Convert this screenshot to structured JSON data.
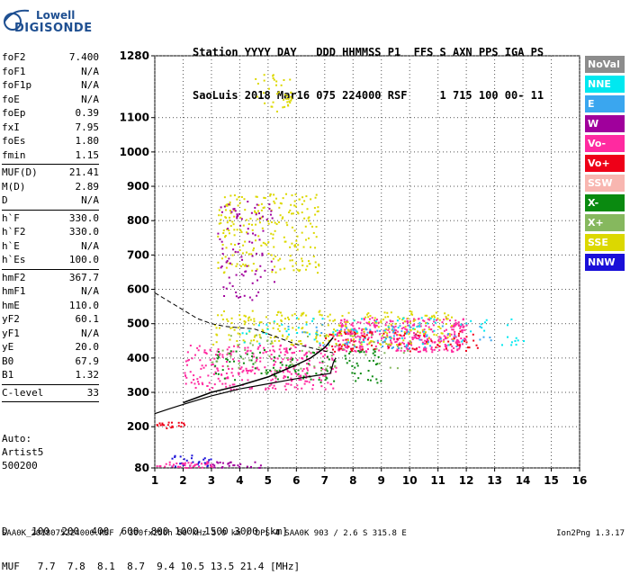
{
  "logo": {
    "line1": "Lowell",
    "line2": "DIGISONDE"
  },
  "header": {
    "line1": "Station YYYY DAY   DDD HHMMSS P1  FFS S AXN PPS IGA PS",
    "line2": "SaoLuis 2018 Mar16 075 224000 RSF     1 715 100 00- 11"
  },
  "params_top": [
    {
      "k": "foF2",
      "v": "7.400"
    },
    {
      "k": "foF1",
      "v": "N/A"
    },
    {
      "k": "foF1p",
      "v": "N/A"
    },
    {
      "k": "foE",
      "v": "N/A"
    },
    {
      "k": "foEp",
      "v": "0.39"
    },
    {
      "k": "fxI",
      "v": "7.95"
    },
    {
      "k": "foEs",
      "v": "1.80"
    },
    {
      "k": "fmin",
      "v": "1.15"
    }
  ],
  "params_mid": [
    {
      "k": "MUF(D)",
      "v": "21.41"
    },
    {
      "k": "M(D)",
      "v": "2.89"
    },
    {
      "k": "D",
      "v": "N/A"
    }
  ],
  "params_h": [
    {
      "k": "h`F",
      "v": "330.0"
    },
    {
      "k": "h`F2",
      "v": "330.0"
    },
    {
      "k": "h`E",
      "v": "N/A"
    },
    {
      "k": "h`Es",
      "v": "100.0"
    }
  ],
  "params_b": [
    {
      "k": "hmF2",
      "v": "367.7"
    },
    {
      "k": "hmF1",
      "v": "N/A"
    },
    {
      "k": "hmE",
      "v": "110.0"
    },
    {
      "k": "yF2",
      "v": "60.1"
    },
    {
      "k": "yF1",
      "v": "N/A"
    },
    {
      "k": "yE",
      "v": "20.0"
    },
    {
      "k": "B0",
      "v": "67.9"
    },
    {
      "k": "B1",
      "v": "1.32"
    }
  ],
  "clevel": {
    "k": "C-level",
    "v": "33"
  },
  "auto": {
    "line1": "Auto:",
    "line2": "Artist5",
    "line3": "500200"
  },
  "legend": [
    {
      "label": "NoVal",
      "color": "#8c8c8c"
    },
    {
      "label": "NNE",
      "color": "#00e8f0"
    },
    {
      "label": "E",
      "color": "#3aa6ef"
    },
    {
      "label": "W",
      "color": "#a0009c"
    },
    {
      "label": "Vo-",
      "color": "#ff2aa0"
    },
    {
      "label": "Vo+",
      "color": "#ee0018"
    },
    {
      "label": "SSW",
      "color": "#f8b6b0"
    },
    {
      "label": "X-",
      "color": "#0a8a10"
    },
    {
      "label": "X+",
      "color": "#86b85e"
    },
    {
      "label": "SSE",
      "color": "#dcd800"
    },
    {
      "label": "NNW",
      "color": "#1a10d8"
    }
  ],
  "footer": {
    "d_line": "D    100  200  400  600  800 1000 1500 3000 [km]",
    "muf_line": "MUF   7.7  7.8  8.1  8.7  9.4 10.5 13.5 21.4 [MHz]",
    "file_line": "SAA0K_2018075224000.RSF / 300fx256h 50 kHz 5.0 km / DPS-4 SAA0K 903 / 2.6 S 315.8 E",
    "version": "Ion2Png 1.3.17"
  },
  "chart_data": {
    "type": "scatter",
    "xlim": [
      1,
      16
    ],
    "ylim": [
      80,
      1280
    ],
    "x_ticks": [
      1,
      2,
      3,
      4,
      5,
      6,
      7,
      8,
      9,
      10,
      11,
      12,
      13,
      14,
      15,
      16
    ],
    "y_ticks": [
      80,
      200,
      300,
      400,
      500,
      600,
      700,
      800,
      900,
      1000,
      1100,
      1280
    ],
    "true_height_profile": [
      [
        1.0,
        238
      ],
      [
        1.5,
        252
      ],
      [
        2.0,
        265
      ],
      [
        3.0,
        290
      ],
      [
        4.0,
        310
      ],
      [
        5.0,
        325
      ],
      [
        6.0,
        340
      ],
      [
        6.8,
        350
      ],
      [
        7.2,
        355
      ],
      [
        7.25,
        370
      ],
      [
        7.3,
        385
      ],
      [
        7.35,
        395
      ],
      [
        7.4,
        400
      ]
    ],
    "virtual_height_trace": [
      [
        2.0,
        270
      ],
      [
        3.0,
        300
      ],
      [
        4.0,
        320
      ],
      [
        5.0,
        345
      ],
      [
        6.0,
        380
      ],
      [
        6.5,
        400
      ],
      [
        7.0,
        430
      ],
      [
        7.3,
        460
      ]
    ],
    "dashed_trace": [
      [
        1.0,
        590
      ],
      [
        1.5,
        565
      ],
      [
        2.0,
        540
      ],
      [
        2.5,
        515
      ],
      [
        3.0,
        500
      ],
      [
        3.5,
        492
      ],
      [
        4.0,
        488
      ],
      [
        4.5,
        485
      ],
      [
        5.0,
        470
      ],
      [
        5.5,
        455
      ],
      [
        6.0,
        440
      ],
      [
        6.5,
        430
      ],
      [
        7.0,
        420
      ],
      [
        7.3,
        415
      ]
    ],
    "echo_clusters": [
      {
        "color": "#ff2aa0",
        "x": [
          2.0,
          7.4
        ],
        "y": [
          310,
          440
        ],
        "n": 300
      },
      {
        "color": "#ff2aa0",
        "x": [
          7.4,
          12.0
        ],
        "y": [
          420,
          520
        ],
        "n": 380
      },
      {
        "color": "#dcd800",
        "x": [
          3.0,
          11.5
        ],
        "y": [
          440,
          540
        ],
        "n": 280
      },
      {
        "color": "#dcd800",
        "x": [
          3.2,
          6.8
        ],
        "y": [
          650,
          880
        ],
        "n": 240
      },
      {
        "color": "#dcd800",
        "x": [
          4.5,
          5.8
        ],
        "y": [
          1120,
          1230
        ],
        "n": 40
      },
      {
        "color": "#0a8a10",
        "x": [
          3.0,
          9.0
        ],
        "y": [
          330,
          430
        ],
        "n": 120
      },
      {
        "color": "#00e8f0",
        "x": [
          4.0,
          14.0
        ],
        "y": [
          440,
          520
        ],
        "n": 90
      },
      {
        "color": "#3aa6ef",
        "x": [
          5.5,
          13.0
        ],
        "y": [
          430,
          500
        ],
        "n": 60
      },
      {
        "color": "#ee0018",
        "x": [
          7.0,
          12.5
        ],
        "y": [
          420,
          480
        ],
        "n": 80
      },
      {
        "color": "#a0009c",
        "x": [
          3.2,
          5.2
        ],
        "y": [
          570,
          860
        ],
        "n": 90
      },
      {
        "color": "#86b85e",
        "x": [
          3.0,
          10.0
        ],
        "y": [
          360,
          470
        ],
        "n": 70
      },
      {
        "color": "#1a10d8",
        "x": [
          1.5,
          3.0
        ],
        "y": [
          85,
          120
        ],
        "n": 30
      },
      {
        "color": "#ff2aa0",
        "x": [
          1.0,
          3.0
        ],
        "y": [
          82,
          100
        ],
        "n": 40
      },
      {
        "color": "#ee0018",
        "x": [
          1.0,
          2.1
        ],
        "y": [
          195,
          215
        ],
        "n": 20
      },
      {
        "color": "#a0009c",
        "x": [
          3.0,
          4.8
        ],
        "y": [
          82,
          100
        ],
        "n": 25
      }
    ]
  }
}
